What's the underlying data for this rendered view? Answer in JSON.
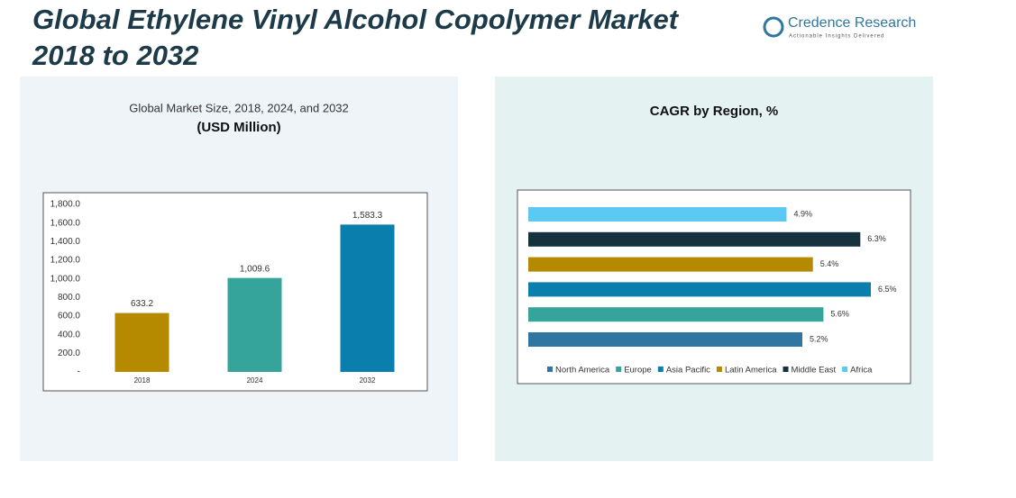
{
  "header": {
    "title_line1": "Global Ethylene Vinyl Alcohol Copolymer Market",
    "title_line2": "2018 to 2032",
    "logo_name": "Credence Research",
    "logo_tagline": "Actionable Insights Delivered"
  },
  "chart_data": [
    {
      "type": "bar",
      "title": "Global Market Size, 2018, 2024, and 2032",
      "subtitle": "(USD Million)",
      "categories": [
        "2018",
        "2024",
        "2032"
      ],
      "values": [
        633.2,
        1009.6,
        1583.3
      ],
      "value_labels": [
        "633.2",
        "1,009.6",
        "1,583.3"
      ],
      "colors": [
        "#b58900",
        "#35a59c",
        "#0a7fae"
      ],
      "ylim": [
        0,
        1800
      ],
      "yticks": [
        {
          "value": 0,
          "label": "-"
        },
        {
          "value": 200,
          "label": "200.0"
        },
        {
          "value": 400,
          "label": "400.0"
        },
        {
          "value": 600,
          "label": "600.0"
        },
        {
          "value": 800,
          "label": "800.0"
        },
        {
          "value": 1000,
          "label": "1,000.0"
        },
        {
          "value": 1200,
          "label": "1,200.0"
        },
        {
          "value": 1400,
          "label": "1,400.0"
        },
        {
          "value": 1600,
          "label": "1,600.0"
        },
        {
          "value": 1800,
          "label": "1,800.0"
        }
      ],
      "grid": false
    },
    {
      "type": "barh",
      "title": "CAGR by Region, %",
      "categories": [
        "North America",
        "Europe",
        "Asia Pacific",
        "Latin America",
        "Middle East",
        "Africa"
      ],
      "values": [
        5.2,
        5.6,
        6.5,
        5.4,
        6.3,
        4.9
      ],
      "value_labels": [
        "5.2%",
        "5.6%",
        "6.5%",
        "5.4%",
        "6.3%",
        "4.9%"
      ],
      "colors": [
        "#2f77a1",
        "#35a59c",
        "#0a7fae",
        "#b58900",
        "#17323f",
        "#5cc9f2"
      ],
      "legend": "bottom"
    }
  ]
}
